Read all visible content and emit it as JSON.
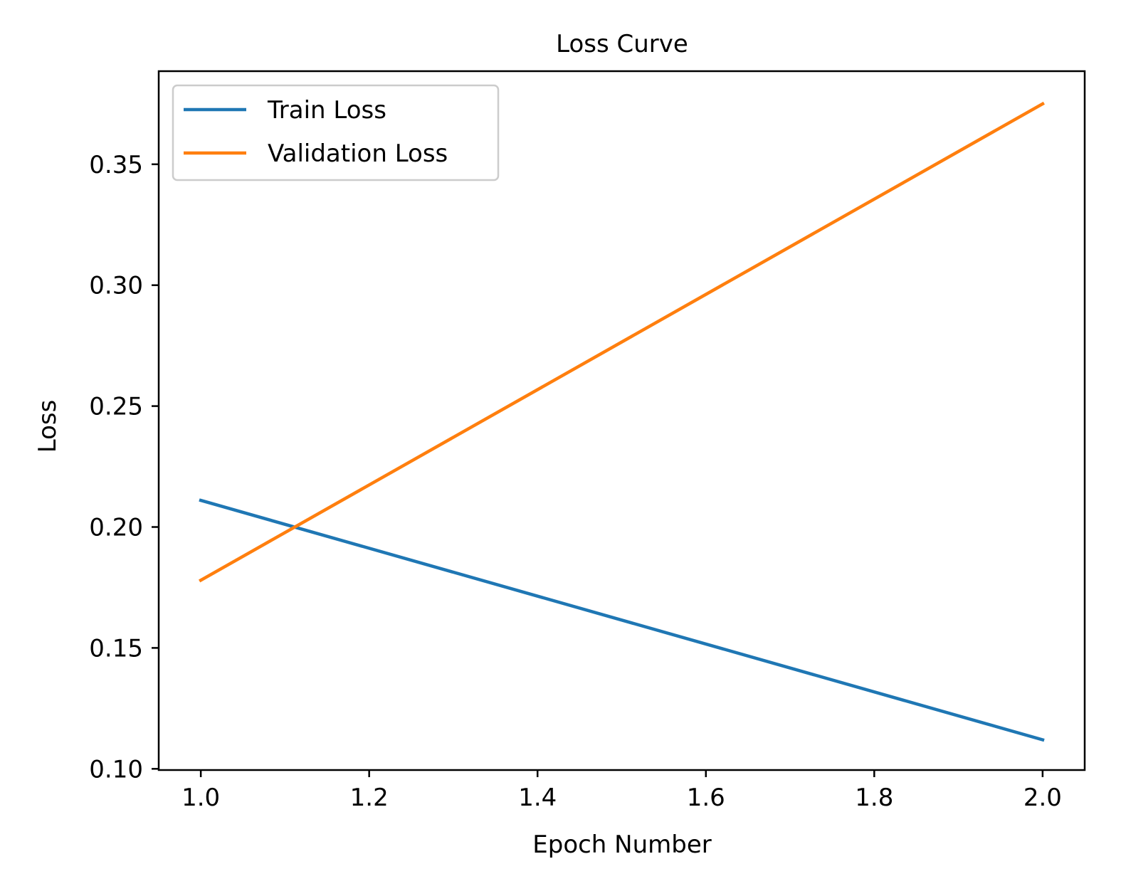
{
  "chart_data": {
    "type": "line",
    "title": "Loss Curve",
    "xlabel": "Epoch Number",
    "ylabel": "Loss",
    "xlim": [
      0.95,
      2.05
    ],
    "ylim": [
      0.0995,
      0.3885
    ],
    "xticks": [
      1.0,
      1.2,
      1.4,
      1.6,
      1.8,
      2.0
    ],
    "xtick_labels": [
      "1.0",
      "1.2",
      "1.4",
      "1.6",
      "1.8",
      "2.0"
    ],
    "yticks": [
      0.1,
      0.15,
      0.2,
      0.25,
      0.3,
      0.35
    ],
    "ytick_labels": [
      "0.10",
      "0.15",
      "0.20",
      "0.25",
      "0.30",
      "0.35"
    ],
    "grid": false,
    "legend_position": "top-left",
    "x": [
      1,
      2
    ],
    "series": [
      {
        "name": "Train Loss",
        "values": [
          0.211,
          0.112
        ],
        "color": "#1f77b4"
      },
      {
        "name": "Validation Loss",
        "values": [
          0.178,
          0.375
        ],
        "color": "#ff7f0e"
      }
    ]
  }
}
